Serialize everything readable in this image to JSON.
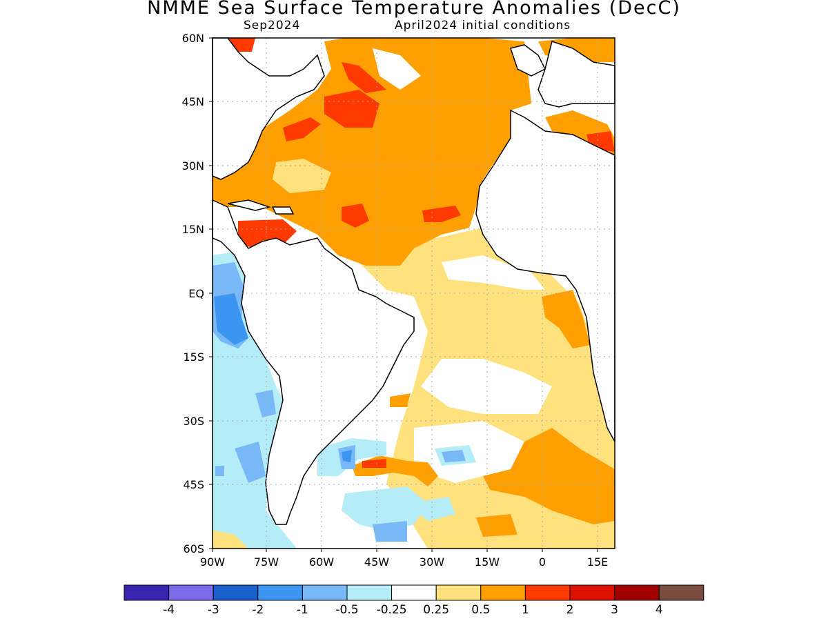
{
  "title": "NMME Sea Surface Temperature Anomalies (DecC)",
  "subtitle_left": "Sep2024",
  "subtitle_right": "April2024 initial conditions",
  "lat_labels": [
    "60N",
    "45N",
    "30N",
    "15N",
    "EQ",
    "15S",
    "30S",
    "45S",
    "60S"
  ],
  "lon_labels": [
    "90W",
    "75W",
    "60W",
    "45W",
    "30W",
    "15W",
    "0",
    "15E"
  ],
  "colorbar": {
    "colors": [
      "#3a25b1",
      "#7d6ae9",
      "#1a5fcc",
      "#3c95f0",
      "#78b8f7",
      "#b4ecf8",
      "#ffffff",
      "#ffe17e",
      "#ffa000",
      "#ff3a00",
      "#dd1100",
      "#a10200",
      "#7a4c3e"
    ],
    "labels": [
      "-4",
      "-3",
      "-2",
      "-1",
      "-0.5",
      "-0.25",
      "0.25",
      "0.5",
      "1",
      "2",
      "3",
      "4"
    ]
  }
}
